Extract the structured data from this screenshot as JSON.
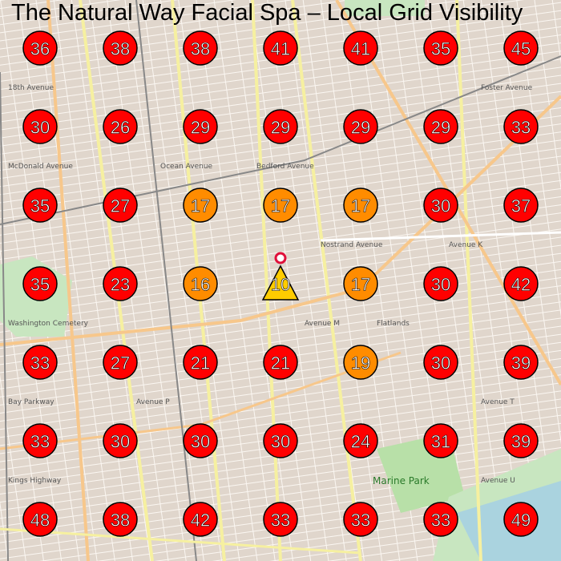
{
  "title": "The Natural Way Facial Spa – Local Grid Visibility",
  "colors": {
    "rank_bad": "#ff0000",
    "rank_mid": "#ff8c00",
    "rank_good": "#ffcc00",
    "map_bg": "#f2efe9"
  },
  "business_pin_icon": "map-pin-icon",
  "grid": [
    [
      36,
      38,
      38,
      41,
      41,
      35,
      45
    ],
    [
      30,
      26,
      29,
      29,
      29,
      29,
      33
    ],
    [
      35,
      27,
      17,
      17,
      17,
      30,
      37
    ],
    [
      35,
      23,
      16,
      10,
      17,
      30,
      42
    ],
    [
      33,
      27,
      21,
      21,
      19,
      30,
      39
    ],
    [
      33,
      30,
      30,
      30,
      24,
      31,
      39
    ],
    [
      48,
      38,
      42,
      33,
      33,
      33,
      49
    ]
  ],
  "map_labels": {
    "l1": "18th Avenue",
    "l2": "McDonald Avenue",
    "l3": "Ocean Avenue",
    "l4": "Bedford Avenue",
    "l5": "Nostrand Avenue",
    "l6": "Avenue K",
    "l7": "Flatlands",
    "l8": "Avenue M",
    "l9": "Washington Cemetery",
    "l10": "Bay Parkway",
    "l11": "Avenue P",
    "l12": "Kings Highway",
    "l13": "Marine Park",
    "l14": "Avenue U",
    "l15": "Avenue T",
    "l16": "Foster Avenue"
  }
}
